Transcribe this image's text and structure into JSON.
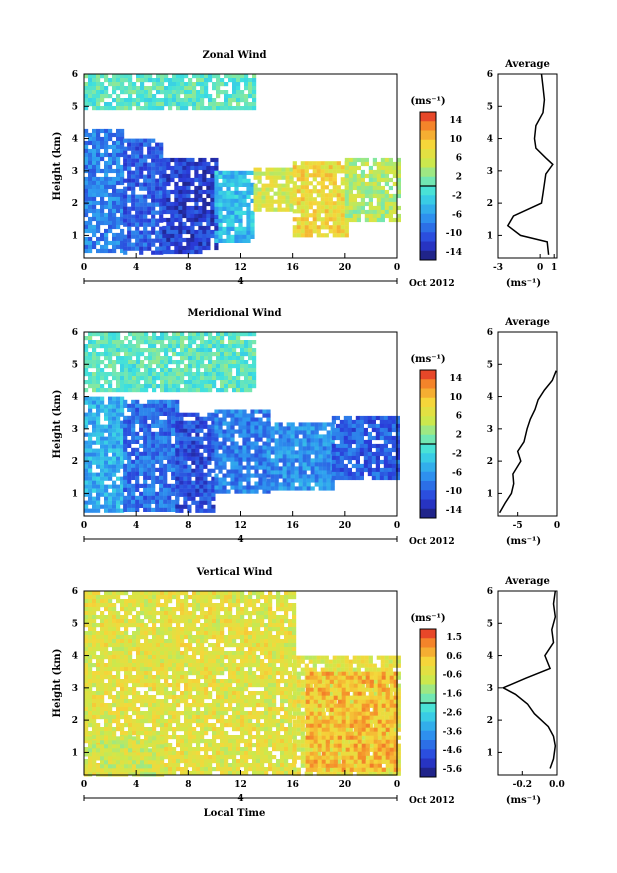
{
  "chart_data": [
    {
      "type": "heatmap",
      "title": "Zonal Wind",
      "ylabel": "Height (km)",
      "x_ticks": [
        "0",
        "4",
        "8",
        "12",
        "16",
        "20",
        "0"
      ],
      "y_ticks": [
        "1",
        "2",
        "3",
        "4",
        "5",
        "6"
      ],
      "xlim": [
        0,
        24
      ],
      "ylim": [
        0.3,
        6
      ],
      "colorbar": {
        "unit": "(ms⁻¹)",
        "ticks": [
          "14",
          "10",
          "6",
          "2",
          "-2",
          "-6",
          "-10",
          "-14"
        ],
        "range": [
          -16,
          16
        ]
      },
      "date_label_number": "4",
      "date_label": "Oct 2012",
      "regions": [
        {
          "t": [
            0,
            13
          ],
          "z": [
            4.9,
            6.0
          ],
          "value": 0
        },
        {
          "t": [
            0,
            3
          ],
          "z": [
            0.5,
            4.3
          ],
          "value": -8
        },
        {
          "t": [
            3,
            6
          ],
          "z": [
            0.5,
            4.0
          ],
          "value": -10
        },
        {
          "t": [
            6,
            10
          ],
          "z": [
            0.5,
            3.4
          ],
          "value": -12
        },
        {
          "t": [
            10,
            13
          ],
          "z": [
            0.8,
            3.0
          ],
          "value": -4
        },
        {
          "t": [
            13,
            16
          ],
          "z": [
            1.8,
            3.1
          ],
          "value": 6
        },
        {
          "t": [
            16,
            20
          ],
          "z": [
            1.0,
            3.3
          ],
          "value": 8
        },
        {
          "t": [
            20,
            24
          ],
          "z": [
            1.5,
            3.4
          ],
          "value": 4
        }
      ],
      "profile": {
        "title": "Average",
        "xlabel": "(ms⁻¹)",
        "x_ticks": [
          "-3",
          "0",
          "1"
        ],
        "xlim": [
          -3,
          1.2
        ],
        "z": [
          0.4,
          0.8,
          1.0,
          1.3,
          1.6,
          2.0,
          2.3,
          2.6,
          2.9,
          3.2,
          3.4,
          3.7,
          4.0,
          4.4,
          4.8,
          5.2,
          5.6,
          6.0
        ],
        "value": [
          0.6,
          0.5,
          -1.4,
          -2.3,
          -1.9,
          0.1,
          0.2,
          0.3,
          0.4,
          0.9,
          0.4,
          -0.3,
          -0.4,
          -0.3,
          0.2,
          0.3,
          0.2,
          0.1
        ]
      }
    },
    {
      "type": "heatmap",
      "title": "Meridional Wind",
      "ylabel": "Height (km)",
      "x_ticks": [
        "0",
        "4",
        "8",
        "12",
        "16",
        "20",
        "0"
      ],
      "y_ticks": [
        "1",
        "2",
        "3",
        "4",
        "5",
        "6"
      ],
      "xlim": [
        0,
        24
      ],
      "ylim": [
        0.3,
        6
      ],
      "colorbar": {
        "unit": "(ms⁻¹)",
        "ticks": [
          "14",
          "10",
          "6",
          "2",
          "-2",
          "-6",
          "-10",
          "-14"
        ],
        "range": [
          -16,
          16
        ]
      },
      "date_label_number": "4",
      "date_label": "Oct 2012",
      "regions": [
        {
          "t": [
            0,
            13
          ],
          "z": [
            4.2,
            6.0
          ],
          "value": 0
        },
        {
          "t": [
            0,
            3
          ],
          "z": [
            0.5,
            4.0
          ],
          "value": -5
        },
        {
          "t": [
            3,
            7
          ],
          "z": [
            0.5,
            3.9
          ],
          "value": -9
        },
        {
          "t": [
            7,
            10
          ],
          "z": [
            0.5,
            3.5
          ],
          "value": -11
        },
        {
          "t": [
            10,
            14
          ],
          "z": [
            1.0,
            3.6
          ],
          "value": -8
        },
        {
          "t": [
            14,
            19
          ],
          "z": [
            1.2,
            3.2
          ],
          "value": -7
        },
        {
          "t": [
            19,
            24
          ],
          "z": [
            1.5,
            3.4
          ],
          "value": -10
        }
      ],
      "profile": {
        "title": "Average",
        "xlabel": "(ms⁻¹)",
        "x_ticks": [
          "-5",
          "0"
        ],
        "xlim": [
          -7.5,
          0
        ],
        "z": [
          0.4,
          0.7,
          1.0,
          1.3,
          1.6,
          2.0,
          2.3,
          2.6,
          3.0,
          3.3,
          3.6,
          3.9,
          4.2,
          4.5,
          4.8
        ],
        "value": [
          -7.3,
          -6.6,
          -5.8,
          -5.5,
          -5.6,
          -4.6,
          -5.0,
          -4.2,
          -3.8,
          -3.4,
          -2.8,
          -2.4,
          -1.6,
          -0.6,
          -0.1
        ]
      }
    },
    {
      "type": "heatmap",
      "title": "Vertical Wind",
      "ylabel": "Height (km)",
      "xlabel": "Local Time",
      "x_ticks": [
        "0",
        "4",
        "8",
        "12",
        "16",
        "20",
        "0"
      ],
      "y_ticks": [
        "1",
        "2",
        "3",
        "4",
        "5",
        "6"
      ],
      "xlim": [
        0,
        24
      ],
      "ylim": [
        0.3,
        6
      ],
      "colorbar": {
        "unit": "(ms⁻¹)",
        "ticks": [
          "1.5",
          "0.6",
          "-0.6",
          "-1.6",
          "-2.6",
          "-3.6",
          "-4.6",
          "-5.6"
        ],
        "range": [
          -6,
          2
        ]
      },
      "date_label_number": "4",
      "date_label": "Oct 2012",
      "regions": [
        {
          "t": [
            0,
            16
          ],
          "z": [
            0.3,
            6.0
          ],
          "value": -0.3
        },
        {
          "t": [
            16,
            24
          ],
          "z": [
            0.3,
            4.0
          ],
          "value": -0.3
        },
        {
          "t": [
            0,
            6
          ],
          "z": [
            0.3,
            1.5
          ],
          "value": -0.6
        },
        {
          "t": [
            17,
            24
          ],
          "z": [
            0.5,
            3.5
          ],
          "value": 0.6
        }
      ],
      "profile": {
        "title": "Average",
        "xlabel": "(ms⁻¹)",
        "x_ticks": [
          "-0.2",
          "0.0"
        ],
        "xlim": [
          -0.34,
          0.0
        ],
        "z": [
          0.5,
          0.8,
          1.2,
          1.5,
          1.8,
          2.2,
          2.5,
          2.8,
          3.0,
          3.3,
          3.6,
          4.0,
          4.4,
          4.8,
          5.2,
          5.6,
          6.0
        ],
        "value": [
          -0.04,
          -0.02,
          -0.01,
          -0.02,
          -0.05,
          -0.13,
          -0.17,
          -0.24,
          -0.31,
          -0.18,
          -0.04,
          -0.07,
          -0.02,
          -0.03,
          -0.01,
          -0.02,
          -0.01
        ]
      }
    }
  ]
}
